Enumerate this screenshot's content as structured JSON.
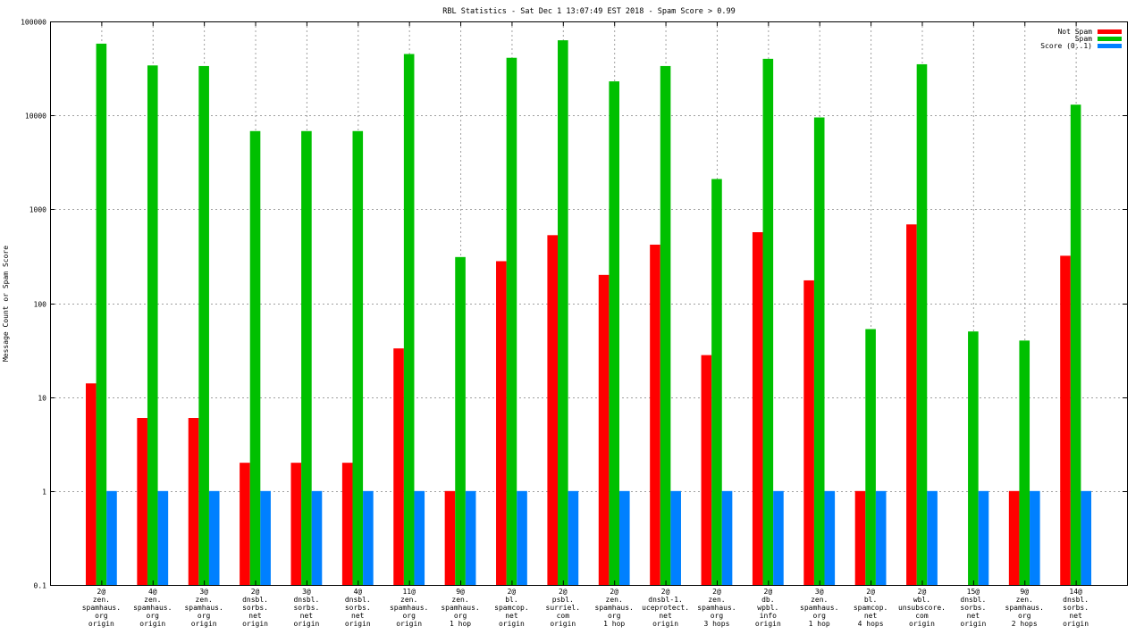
{
  "chart_data": {
    "type": "bar",
    "title": "RBL Statistics - Sat Dec  1 13:07:49 EST 2018 - Spam Score > 0.99",
    "ylabel": "Message Count or Spam Score",
    "xlabel": "",
    "yscale": "log",
    "ylim": [
      0.1,
      100000
    ],
    "yticks": [
      "0.1",
      "1",
      "10",
      "100",
      "1000",
      "10000",
      "100000"
    ],
    "ytick_values": [
      0.1,
      1,
      10,
      100,
      1000,
      10000,
      100000
    ],
    "grid": true,
    "legend_position": "top-right",
    "categories": [
      [
        "2@",
        "zen.",
        "spamhaus.",
        "org",
        "origin"
      ],
      [
        "4@",
        "zen.",
        "spamhaus.",
        "org",
        "origin"
      ],
      [
        "3@",
        "zen.",
        "spamhaus.",
        "org",
        "origin"
      ],
      [
        "2@",
        "dnsbl.",
        "sorbs.",
        "net",
        "origin"
      ],
      [
        "3@",
        "dnsbl.",
        "sorbs.",
        "net",
        "origin"
      ],
      [
        "4@",
        "dnsbl.",
        "sorbs.",
        "net",
        "origin"
      ],
      [
        "11@",
        "zen.",
        "spamhaus.",
        "org",
        "origin"
      ],
      [
        "9@",
        "zen.",
        "spamhaus.",
        "org",
        "1 hop"
      ],
      [
        "2@",
        "bl.",
        "spamcop.",
        "net",
        "origin"
      ],
      [
        "2@",
        "psbl.",
        "surriel.",
        "com",
        "origin"
      ],
      [
        "2@",
        "zen.",
        "spamhaus.",
        "org",
        "1 hop"
      ],
      [
        "2@",
        "dnsbl-1.",
        "uceprotect.",
        "net",
        "origin"
      ],
      [
        "2@",
        "zen.",
        "spamhaus.",
        "org",
        "3 hops"
      ],
      [
        "2@",
        "db.",
        "wpbl.",
        "info",
        "origin"
      ],
      [
        "3@",
        "zen.",
        "spamhaus.",
        "org",
        "1 hop"
      ],
      [
        "2@",
        "bl.",
        "spamcop.",
        "net",
        "4 hops"
      ],
      [
        "2@",
        "wbl.",
        "unsubscore.",
        "com",
        "origin"
      ],
      [
        "15@",
        "dnsbl.",
        "sorbs.",
        "net",
        "origin"
      ],
      [
        "9@",
        "zen.",
        "spamhaus.",
        "org",
        "2 hops"
      ],
      [
        "14@",
        "dnsbl.",
        "sorbs.",
        "net",
        "origin"
      ]
    ],
    "series": [
      {
        "name": "Not Spam",
        "color": "#ff0000",
        "values": [
          14,
          6,
          6,
          2,
          2,
          2,
          33,
          1,
          280,
          530,
          200,
          420,
          28,
          570,
          175,
          1,
          690,
          null,
          1,
          320
        ]
      },
      {
        "name": "Spam",
        "color": "#00c000",
        "values": [
          58000,
          34000,
          33500,
          6800,
          6800,
          6800,
          45000,
          310,
          41000,
          63000,
          23000,
          33500,
          2100,
          40000,
          9500,
          53,
          35000,
          50,
          40,
          13000
        ]
      },
      {
        "name": "Score (0..1)",
        "color": "#0080ff",
        "values": [
          1,
          1,
          1,
          1,
          1,
          1,
          1,
          1,
          1,
          1,
          1,
          1,
          1,
          1,
          1,
          1,
          1,
          1,
          1,
          1
        ]
      }
    ]
  }
}
